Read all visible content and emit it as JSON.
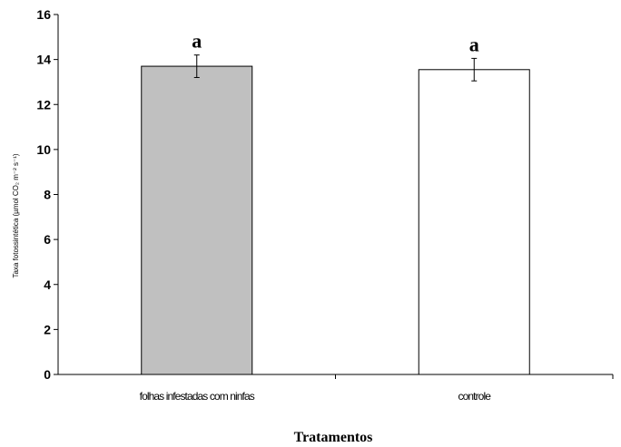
{
  "chart_data": {
    "type": "bar",
    "categories": [
      "folhas infestadas com ninfas",
      "controle"
    ],
    "values": [
      13.7,
      13.55
    ],
    "errors": [
      0.5,
      0.5
    ],
    "significance_letters": [
      "a",
      "a"
    ],
    "bar_colors": [
      "#c0c0c0",
      "#ffffff"
    ],
    "xlabel": "Tratamentos",
    "ylabel": "Taxa fotossintética (µmol CO₂ m⁻² s⁻¹)",
    "ylim": [
      0,
      16
    ],
    "yticks": [
      "0",
      "2",
      "4",
      "6",
      "8",
      "10",
      "12",
      "14",
      "16"
    ],
    "grid": false,
    "legend": "none"
  }
}
